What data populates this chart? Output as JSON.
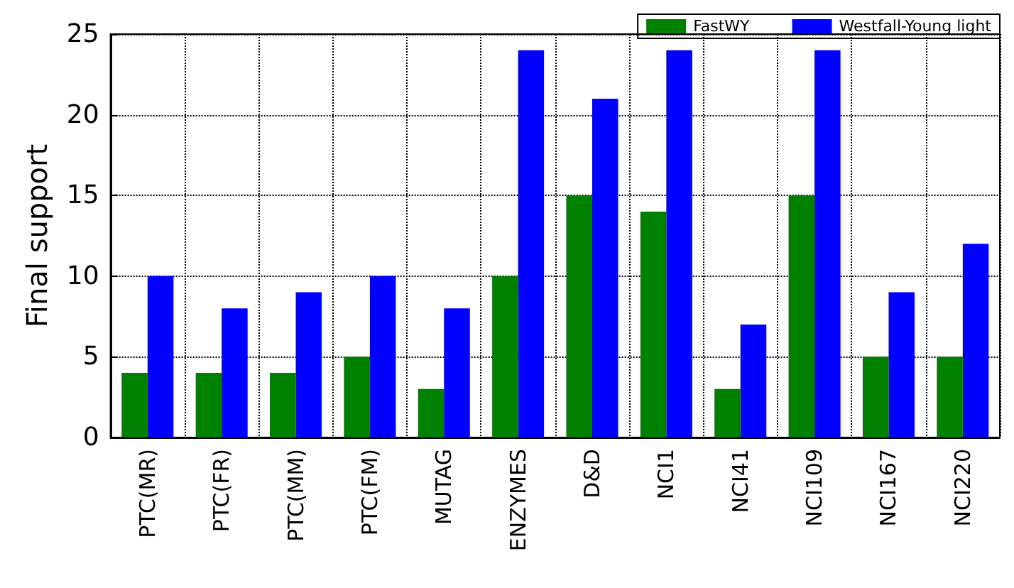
{
  "chart_data": {
    "type": "bar",
    "ylabel": "Final support",
    "categories": [
      "PTC(MR)",
      "PTC(FR)",
      "PTC(MM)",
      "PTC(FM)",
      "MUTAG",
      "ENZYMES",
      "D&D",
      "NCI1",
      "NCI41",
      "NCI109",
      "NCI167",
      "NCI220"
    ],
    "series": [
      {
        "name": "FastWY",
        "color": "#008000",
        "values": [
          4,
          4,
          4,
          5,
          3,
          10,
          15,
          14,
          3,
          15,
          5,
          5
        ]
      },
      {
        "name": "Westfall-Young light",
        "color": "#0000ff",
        "values": [
          10,
          8,
          9,
          10,
          8,
          24,
          21,
          24,
          7,
          24,
          9,
          12
        ]
      }
    ],
    "ylim": [
      0,
      25
    ],
    "yticks": [
      0,
      5,
      10,
      15,
      20,
      25
    ],
    "grid": true,
    "legend": "top right"
  }
}
